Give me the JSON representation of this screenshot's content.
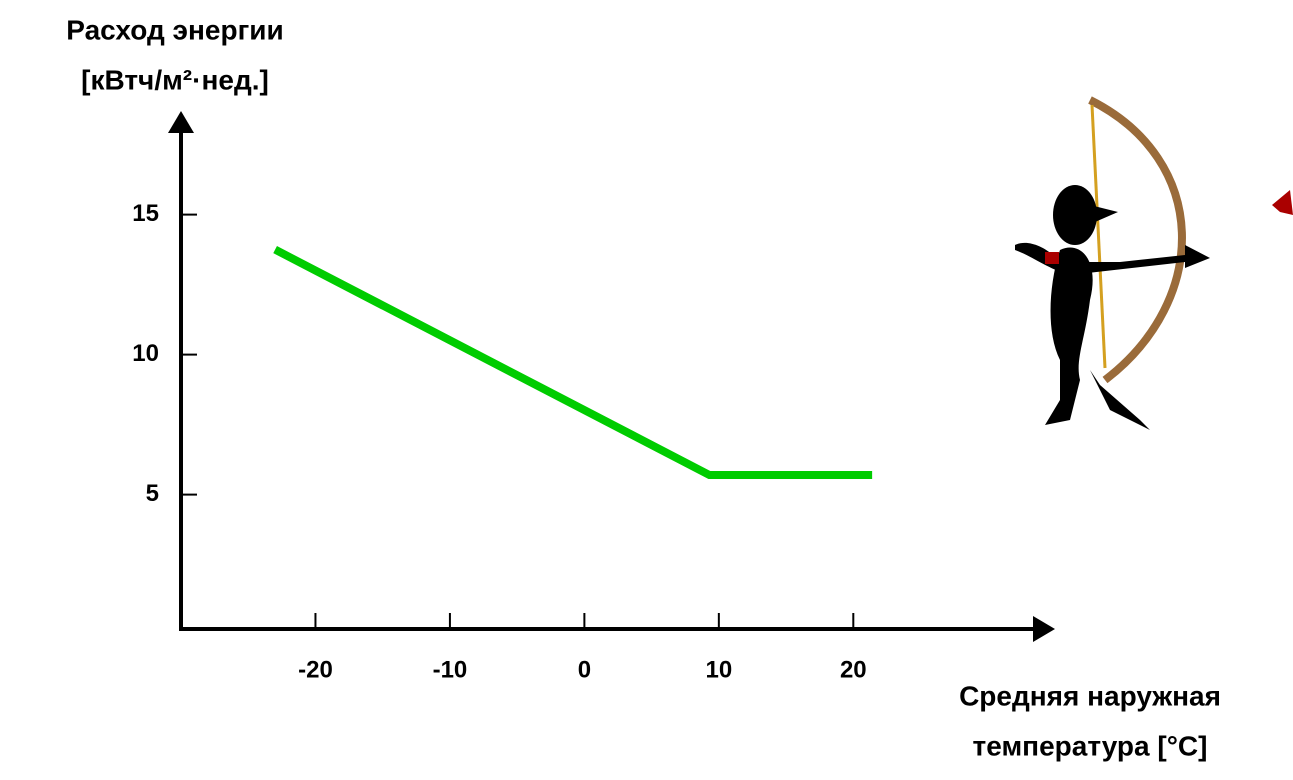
{
  "chart_data": {
    "type": "line",
    "y_label": [
      "Расход энергии",
      "[кВтч/м²·нед.]"
    ],
    "x_label": [
      "Средняя наружная",
      "температура [°C]"
    ],
    "x": [
      -23,
      9.3,
      21.4
    ],
    "series": [
      {
        "color": "#00cc00",
        "values": [
          13.75,
          5.7,
          5.7
        ]
      }
    ],
    "xlim": [
      -30,
      35
    ],
    "xticks": [
      -20,
      -10,
      0,
      10,
      20
    ],
    "ylim": [
      0.2,
      18.7
    ],
    "yticks": [
      5,
      10,
      15
    ]
  }
}
